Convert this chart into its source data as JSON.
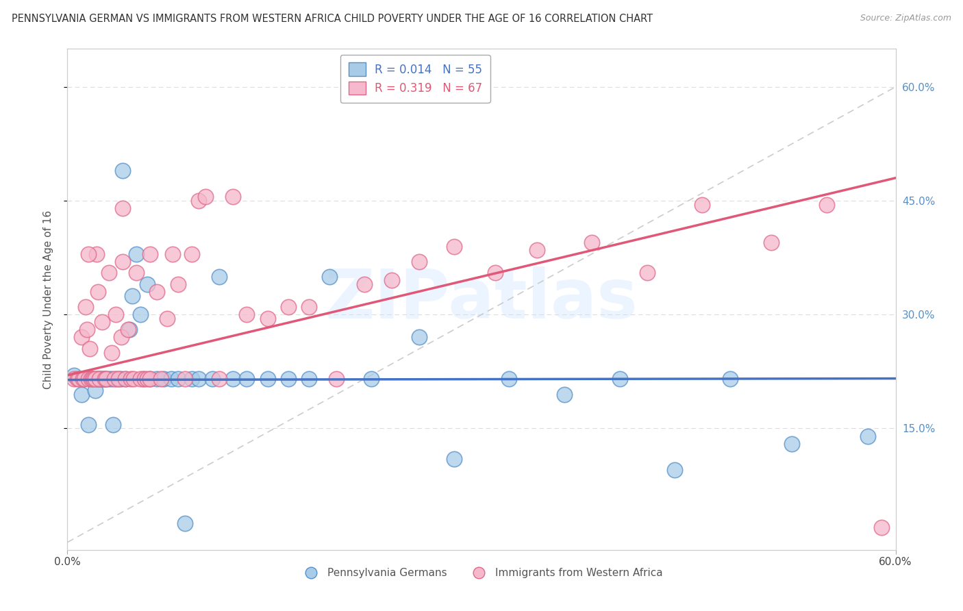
{
  "title": "PENNSYLVANIA GERMAN VS IMMIGRANTS FROM WESTERN AFRICA CHILD POVERTY UNDER THE AGE OF 16 CORRELATION CHART",
  "source": "Source: ZipAtlas.com",
  "ylabel": "Child Poverty Under the Age of 16",
  "xlim": [
    0.0,
    0.6
  ],
  "ylim": [
    -0.01,
    0.65
  ],
  "color_blue": "#a8cce8",
  "color_pink": "#f5b8cc",
  "color_blue_edge": "#5590c8",
  "color_pink_edge": "#e06888",
  "color_blue_line": "#4472c4",
  "color_pink_line": "#e05878",
  "color_diag_line": "#cccccc",
  "background": "#ffffff",
  "watermark": "ZIPatlas",
  "R1": "0.014",
  "N1": "55",
  "R2": "0.319",
  "N2": "67",
  "pa_german_x": [
    0.005,
    0.01,
    0.012,
    0.015,
    0.017,
    0.018,
    0.02,
    0.021,
    0.022,
    0.023,
    0.024,
    0.025,
    0.026,
    0.027,
    0.028,
    0.03,
    0.032,
    0.033,
    0.035,
    0.037,
    0.039,
    0.04,
    0.042,
    0.045,
    0.047,
    0.05,
    0.053,
    0.055,
    0.058,
    0.06,
    0.065,
    0.07,
    0.075,
    0.08,
    0.085,
    0.09,
    0.095,
    0.105,
    0.11,
    0.12,
    0.13,
    0.145,
    0.16,
    0.175,
    0.19,
    0.22,
    0.255,
    0.28,
    0.32,
    0.36,
    0.4,
    0.44,
    0.48,
    0.525,
    0.58
  ],
  "pa_german_y": [
    0.22,
    0.195,
    0.215,
    0.155,
    0.215,
    0.215,
    0.2,
    0.215,
    0.215,
    0.215,
    0.215,
    0.215,
    0.215,
    0.215,
    0.215,
    0.215,
    0.215,
    0.155,
    0.215,
    0.215,
    0.215,
    0.49,
    0.215,
    0.28,
    0.325,
    0.38,
    0.3,
    0.215,
    0.34,
    0.215,
    0.215,
    0.215,
    0.215,
    0.215,
    0.025,
    0.215,
    0.215,
    0.215,
    0.35,
    0.215,
    0.215,
    0.215,
    0.215,
    0.215,
    0.35,
    0.215,
    0.27,
    0.11,
    0.215,
    0.195,
    0.215,
    0.095,
    0.215,
    0.13,
    0.14
  ],
  "wa_immig_x": [
    0.005,
    0.007,
    0.008,
    0.01,
    0.011,
    0.012,
    0.014,
    0.015,
    0.016,
    0.017,
    0.018,
    0.019,
    0.02,
    0.021,
    0.022,
    0.023,
    0.025,
    0.027,
    0.028,
    0.03,
    0.032,
    0.034,
    0.035,
    0.037,
    0.039,
    0.04,
    0.042,
    0.044,
    0.046,
    0.048,
    0.05,
    0.053,
    0.056,
    0.058,
    0.06,
    0.065,
    0.068,
    0.072,
    0.076,
    0.08,
    0.085,
    0.09,
    0.095,
    0.1,
    0.11,
    0.12,
    0.13,
    0.145,
    0.16,
    0.175,
    0.195,
    0.215,
    0.235,
    0.255,
    0.28,
    0.31,
    0.34,
    0.38,
    0.42,
    0.46,
    0.51,
    0.55,
    0.59,
    0.015,
    0.013,
    0.04,
    0.06
  ],
  "wa_immig_y": [
    0.215,
    0.215,
    0.215,
    0.27,
    0.215,
    0.215,
    0.28,
    0.215,
    0.255,
    0.215,
    0.215,
    0.215,
    0.215,
    0.38,
    0.33,
    0.215,
    0.29,
    0.215,
    0.215,
    0.355,
    0.25,
    0.215,
    0.3,
    0.215,
    0.27,
    0.37,
    0.215,
    0.28,
    0.215,
    0.215,
    0.355,
    0.215,
    0.215,
    0.215,
    0.215,
    0.33,
    0.215,
    0.295,
    0.38,
    0.34,
    0.215,
    0.38,
    0.45,
    0.455,
    0.215,
    0.455,
    0.3,
    0.295,
    0.31,
    0.31,
    0.215,
    0.34,
    0.345,
    0.37,
    0.39,
    0.355,
    0.385,
    0.395,
    0.355,
    0.445,
    0.395,
    0.445,
    0.02,
    0.38,
    0.31,
    0.44,
    0.38
  ]
}
